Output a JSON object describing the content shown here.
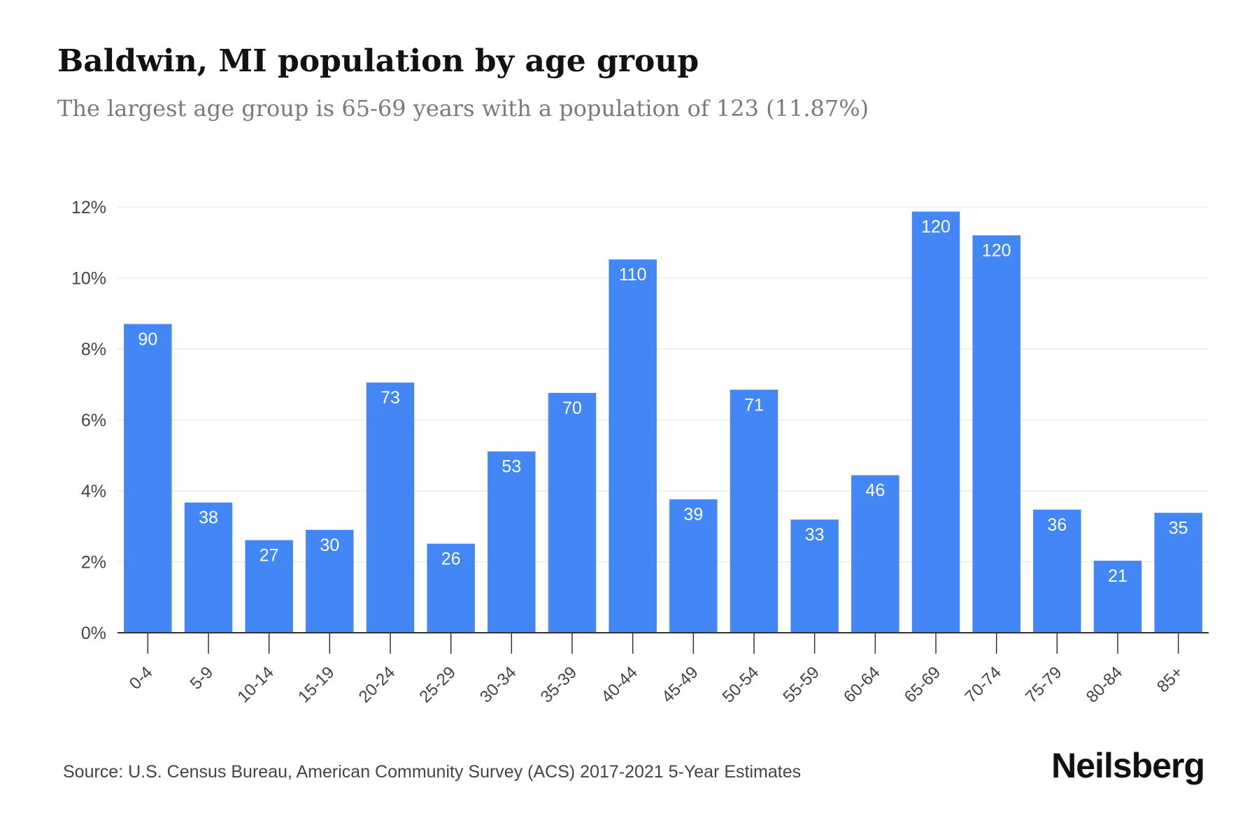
{
  "header": {
    "title": "Baldwin, MI population by age group",
    "subtitle": "The largest age group is 65-69 years with a population of 123 (11.87%)"
  },
  "footer": {
    "source": "Source: U.S. Census Bureau, American Community Survey (ACS) 2017-2021 5-Year Estimates",
    "brand": "Neilsberg"
  },
  "chart_data": {
    "type": "bar",
    "categories": [
      "0-4",
      "5-9",
      "10-14",
      "15-19",
      "20-24",
      "25-29",
      "30-34",
      "35-39",
      "40-44",
      "45-49",
      "50-54",
      "55-59",
      "60-64",
      "65-69",
      "70-74",
      "75-79",
      "80-84",
      "85+"
    ],
    "values": [
      8.7,
      3.67,
      2.61,
      2.9,
      7.05,
      2.51,
      5.11,
      6.76,
      10.52,
      3.76,
      6.85,
      3.19,
      4.44,
      11.87,
      11.2,
      3.47,
      2.03,
      3.38
    ],
    "data_labels": [
      "90",
      "38",
      "27",
      "30",
      "73",
      "26",
      "53",
      "70",
      "110",
      "39",
      "71",
      "33",
      "46",
      "120",
      "120",
      "36",
      "21",
      "35"
    ],
    "ylim": [
      0,
      12
    ],
    "yticks": [
      0,
      2,
      4,
      6,
      8,
      10,
      12
    ],
    "ytick_labels": [
      "0%",
      "2%",
      "4%",
      "6%",
      "8%",
      "10%",
      "12%"
    ],
    "grid": true,
    "colors": {
      "bar": "#4287f5",
      "grid": "#ececec",
      "axis": "#333333",
      "tick_text": "#444444",
      "label_text": "#ffffff"
    }
  }
}
